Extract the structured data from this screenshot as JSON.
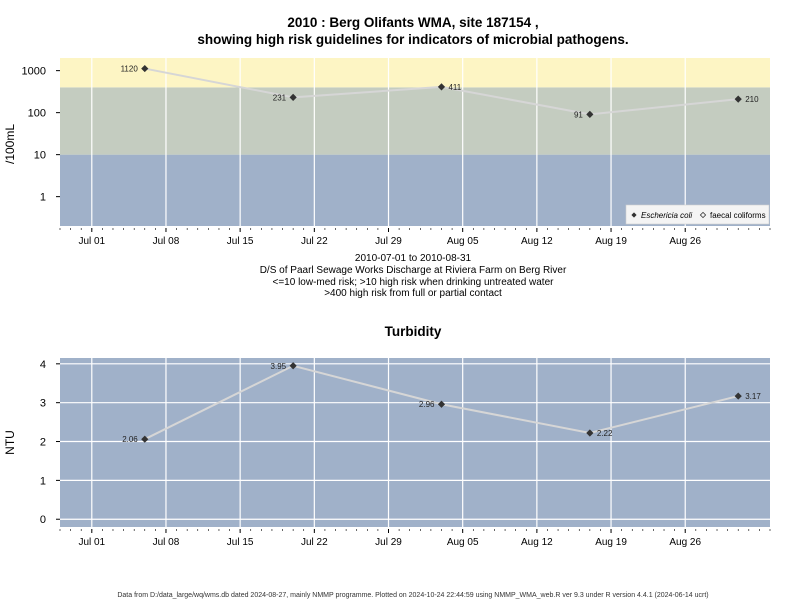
{
  "page": {
    "footer": "Data from D:/data_large/wq/wms.db dated 2024-08-27, mainly NMMP programme. Plotted on 2024-10-24 22:44:59 using NMMP_WMA_web.R ver 9.3 under R version 4.4.1 (2024-06-14 ucrt)"
  },
  "colors": {
    "zone_high": "#fdf5c4",
    "zone_medium": "#c4ccc0",
    "zone_low": "#a0b1c9",
    "plot_bg": "#a0b1c9",
    "gridline": "#ffffff",
    "series_line": "#d6d6d6",
    "marker": "#333333"
  },
  "chart_data": [
    {
      "type": "line",
      "title_line1": "2010 : Berg Olifants WMA, site 187154 ,",
      "title_line2": "showing high risk guidelines for indicators of microbial pathogens.",
      "ylabel": "/100mL",
      "y_scale": "log",
      "ylim": [
        0.2,
        2000
      ],
      "y_ticks": [
        "1",
        "10",
        "100",
        "1000"
      ],
      "x_ticks": [
        "Jul 01",
        "Jul 08",
        "Jul 15",
        "Jul 22",
        "Jul 29",
        "Aug 05",
        "Aug 12",
        "Aug 19",
        "Aug 26"
      ],
      "xlim": [
        "2010-06-28",
        "2010-09-03"
      ],
      "risk_zones": [
        {
          "from": 0.2,
          "to": 10,
          "color": "#a0b1c9"
        },
        {
          "from": 10,
          "to": 400,
          "color": "#c4ccc0"
        },
        {
          "from": 400,
          "to": 2000,
          "color": "#fdf5c4"
        }
      ],
      "caption": [
        "2010-07-01 to 2010-08-31",
        "D/S of Paarl Sewage Works Discharge at Riviera Farm on Berg River",
        "<=10 low-med risk; >10 high risk when drinking untreated water",
        ">400 high risk from full or partial contact"
      ],
      "legend_position": "bottom-right",
      "legend": [
        {
          "label": "Eschericia coli",
          "marker": "filled-diamond"
        },
        {
          "label": "faecal coliforms",
          "marker": "open-diamond"
        }
      ],
      "series": [
        {
          "name": "Eschericia coli",
          "x": [
            "2010-07-06",
            "2010-07-20",
            "2010-08-03",
            "2010-08-17",
            "2010-08-31"
          ],
          "values": [
            1120,
            231,
            411,
            91,
            210
          ],
          "labels": [
            "1120",
            "231",
            "411",
            "91",
            "210"
          ]
        }
      ]
    },
    {
      "type": "line",
      "title": "Turbidity",
      "ylabel": "NTU",
      "ylim": [
        -0.2,
        4.15
      ],
      "y_ticks": [
        "0",
        "1",
        "2",
        "3",
        "4"
      ],
      "x_ticks": [
        "Jul 01",
        "Jul 08",
        "Jul 15",
        "Jul 22",
        "Jul 29",
        "Aug 05",
        "Aug 12",
        "Aug 19",
        "Aug 26"
      ],
      "xlim": [
        "2010-06-28",
        "2010-09-03"
      ],
      "series": [
        {
          "name": "Turbidity",
          "x": [
            "2010-07-06",
            "2010-07-20",
            "2010-08-03",
            "2010-08-17",
            "2010-08-31"
          ],
          "values": [
            2.06,
            3.95,
            2.96,
            2.22,
            3.17
          ],
          "labels": [
            "2.06",
            "3.95",
            "2.96",
            "2.22",
            "3.17"
          ]
        }
      ]
    }
  ]
}
